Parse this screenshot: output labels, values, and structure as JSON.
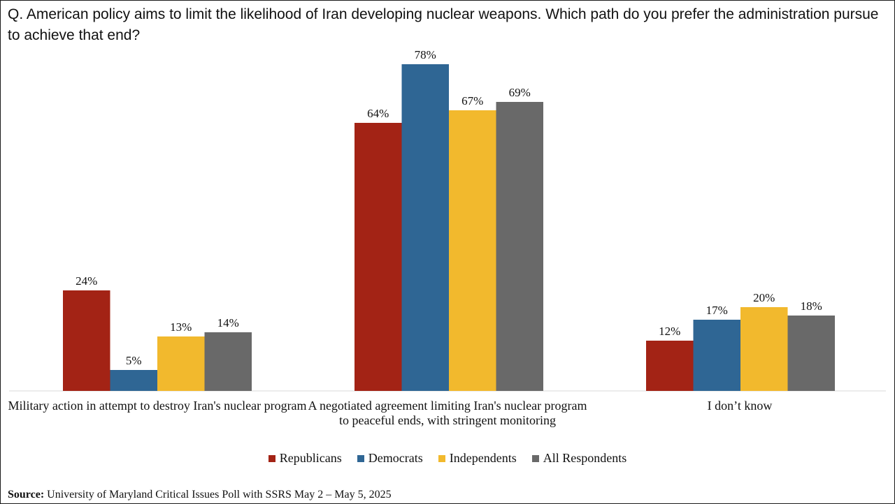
{
  "question": "Q. American policy aims to limit the likelihood of Iran developing nuclear weapons. Which path do you prefer the administration pursue to achieve that end?",
  "chart_data": {
    "type": "bar",
    "title": "Q. American policy aims to limit the likelihood of Iran developing nuclear weapons. Which path do you prefer the administration pursue to achieve that end?",
    "categories": [
      "Military action in attempt to destroy Iran's nuclear program",
      "A negotiated agreement limiting Iran's nuclear program to peaceful ends, with stringent monitoring",
      "I don’t know"
    ],
    "series": [
      {
        "name": "Republicans",
        "color": "#A32315",
        "values": [
          24,
          64,
          12
        ],
        "labels": [
          "24%",
          "64%",
          "12%"
        ]
      },
      {
        "name": "Democrats",
        "color": "#2F6694",
        "values": [
          5,
          78,
          17
        ],
        "labels": [
          "5%",
          "78%",
          "17%"
        ]
      },
      {
        "name": "Independents",
        "color": "#F2B92D",
        "values": [
          13,
          67,
          20
        ],
        "labels": [
          "13%",
          "67%",
          "20%"
        ]
      },
      {
        "name": "All Respondents",
        "color": "#696969",
        "values": [
          14,
          69,
          18
        ],
        "labels": [
          "14%",
          "69%",
          "18%"
        ]
      }
    ],
    "ylim": [
      0,
      80
    ],
    "xlabel": "",
    "ylabel": "",
    "grid": false,
    "legend": "bottom"
  },
  "legend": {
    "items": [
      "Republicans",
      "Democrats",
      "Independents",
      "All Respondents"
    ]
  },
  "source": {
    "label": "Source:",
    "text": "University of Maryland Critical Issues Poll with SSRS May 2 – May 5, 2025"
  }
}
